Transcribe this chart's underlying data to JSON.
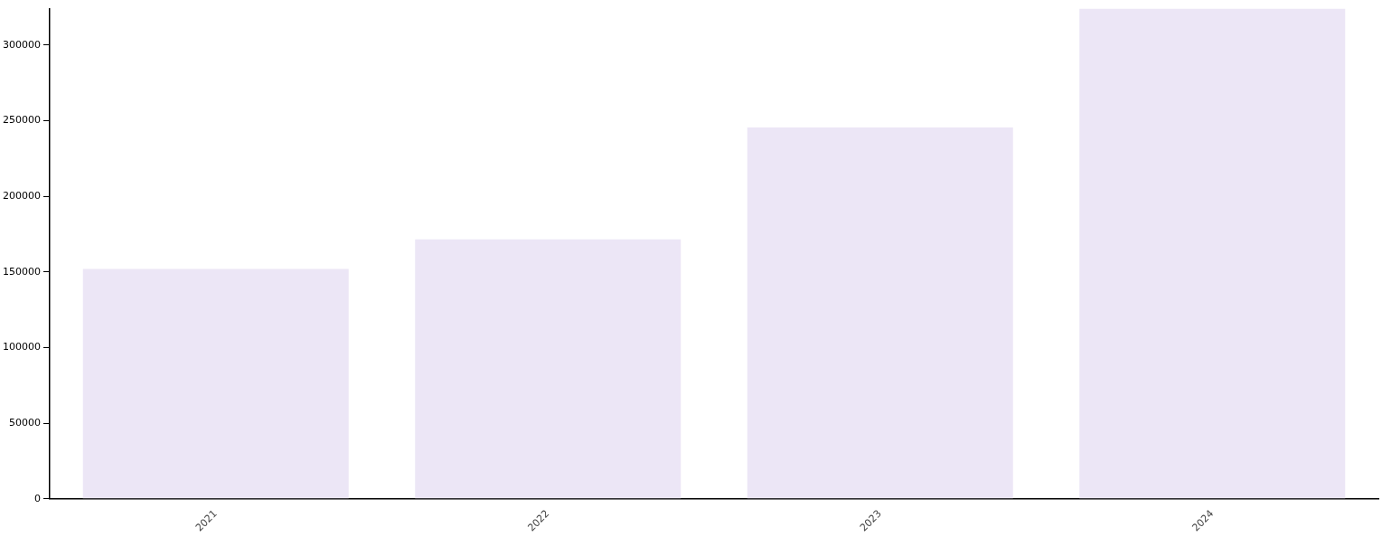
{
  "chart_data": {
    "type": "bar",
    "categories": [
      "2021",
      "2022",
      "2023",
      "2024"
    ],
    "values": [
      152000,
      171500,
      245500,
      324000
    ],
    "color": "#ece6f6",
    "ylim": [
      0,
      324000
    ],
    "yticks": [
      0,
      50000,
      100000,
      150000,
      200000,
      250000,
      300000
    ],
    "grid": false,
    "legend": false
  }
}
